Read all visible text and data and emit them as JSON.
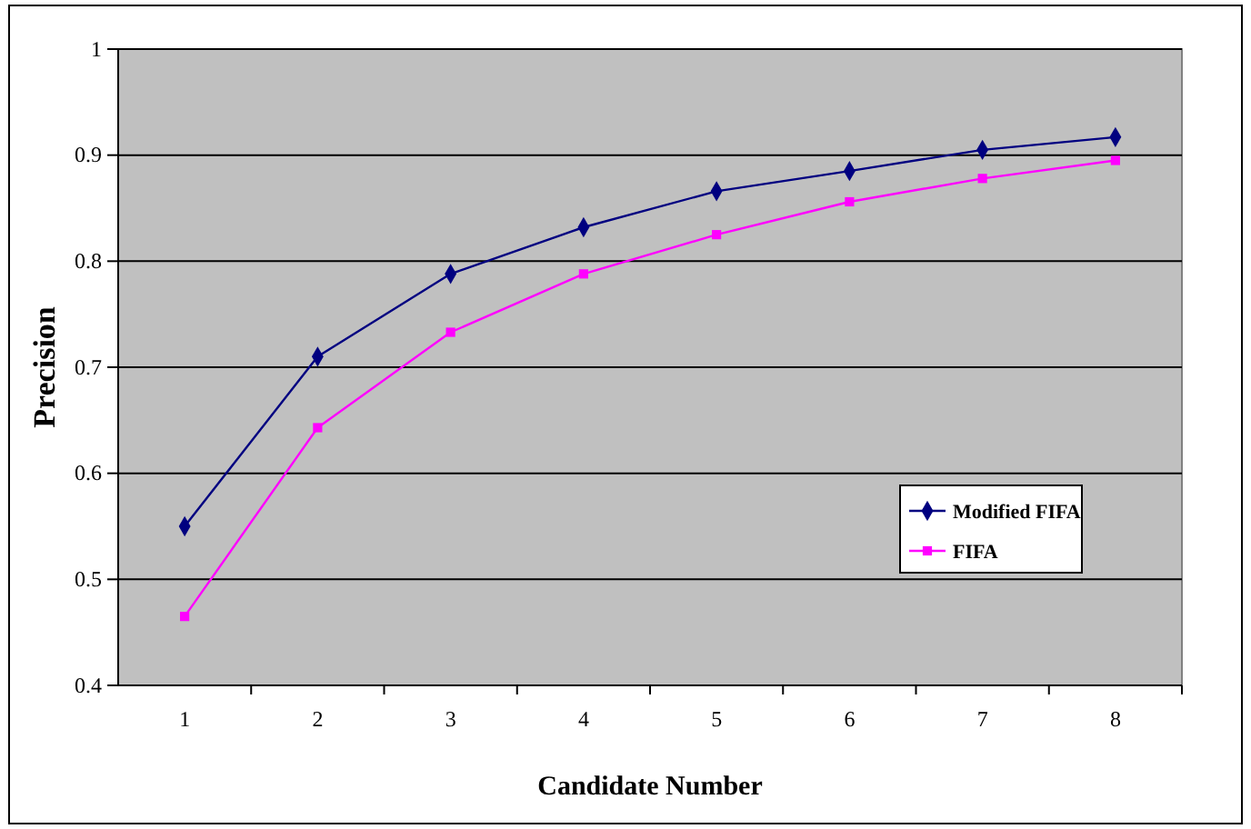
{
  "chart_data": {
    "type": "line",
    "xlabel": "Candidate Number",
    "ylabel": "Precision",
    "categories": [
      "1",
      "2",
      "3",
      "4",
      "5",
      "6",
      "7",
      "8"
    ],
    "ylim": [
      0.4,
      1
    ],
    "yticks": [
      0.4,
      0.5,
      0.6,
      0.7,
      0.8,
      0.9,
      1
    ],
    "grid": "y",
    "legend": "right",
    "line_style": "solid",
    "series": [
      {
        "name": "Modified FIFA",
        "color": "#000080",
        "marker": "diamond",
        "values": [
          0.55,
          0.71,
          0.788,
          0.832,
          0.866,
          0.885,
          0.905,
          0.917
        ]
      },
      {
        "name": "FIFA",
        "color": "#ff00ff",
        "marker": "square",
        "values": [
          0.465,
          0.643,
          0.733,
          0.788,
          0.825,
          0.856,
          0.878,
          0.895
        ]
      }
    ]
  }
}
